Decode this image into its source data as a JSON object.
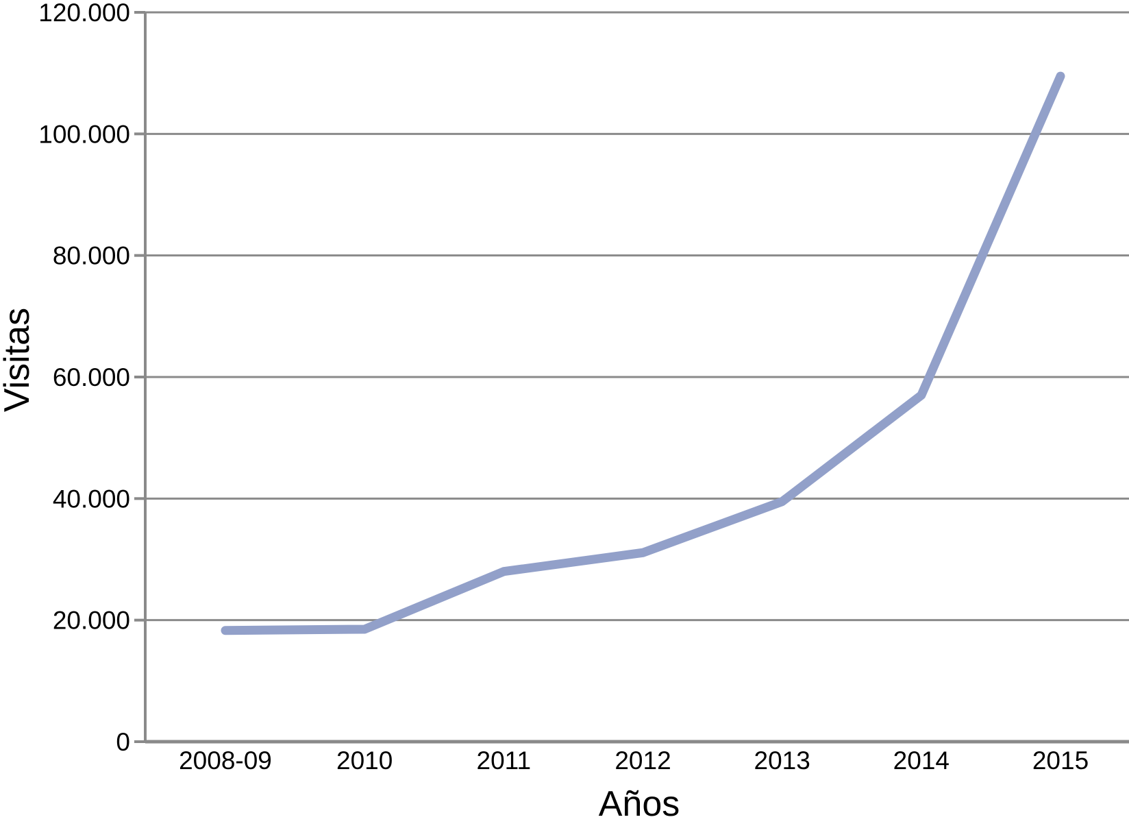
{
  "chart_data": {
    "type": "line",
    "title": "",
    "xlabel": "Años",
    "ylabel": "Visitas",
    "categories": [
      "2008-09",
      "2010",
      "2011",
      "2012",
      "2013",
      "2014",
      "2015"
    ],
    "series": [
      {
        "name": "Visitas",
        "values": [
          18300,
          18500,
          28000,
          31100,
          39500,
          57000,
          109500
        ]
      }
    ],
    "ylim": [
      0,
      120000
    ],
    "ytick_interval": 20000,
    "ytick_labels": [
      "0",
      "20.000",
      "40.000",
      "60.000",
      "80.000",
      "100.000",
      "120.000"
    ],
    "grid": "horizontal-only",
    "legend": "none",
    "colors": {
      "line": "#92a0c9",
      "gridline": "#8a8a8a",
      "axis": "#8a8a8a",
      "text": "#000000",
      "background": "#ffffff"
    }
  }
}
